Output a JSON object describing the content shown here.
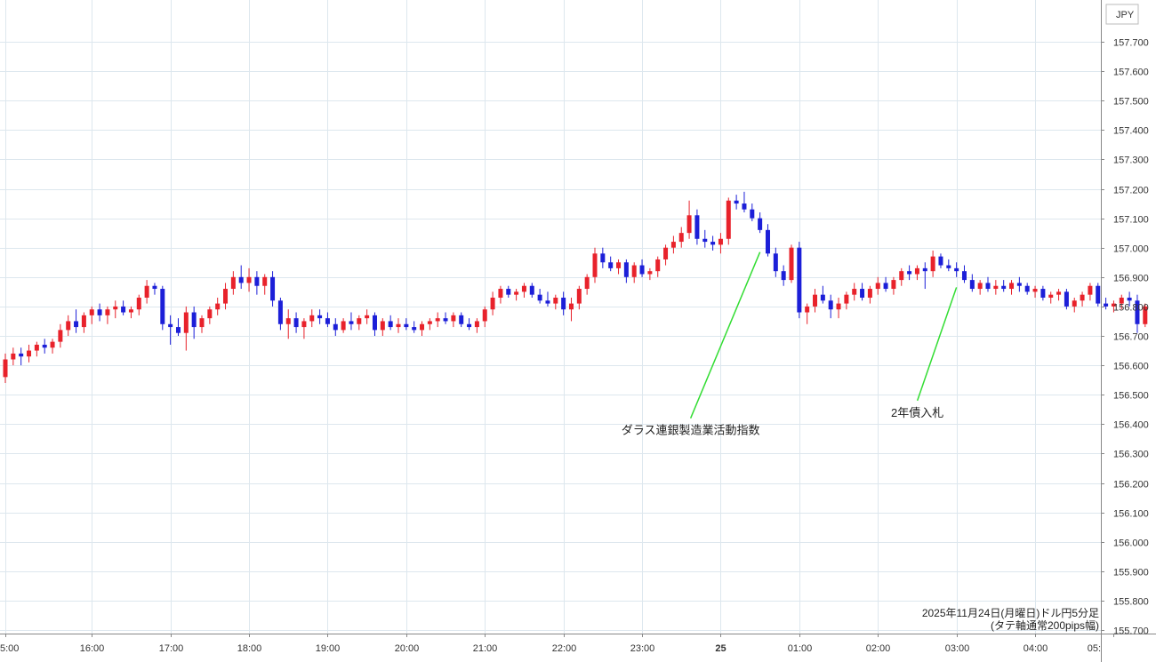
{
  "chart_data": {
    "type": "candlestick",
    "title": "2025年11月24日(月曜日)ドル円5分足",
    "subtitle": "(タテ軸通常200pips幅)",
    "currency_label": "JPY",
    "ylim": [
      155.7,
      157.7
    ],
    "y_ticks": [
      "155.700",
      "155.800",
      "155.900",
      "156.000",
      "156.100",
      "156.200",
      "156.300",
      "156.400",
      "156.500",
      "156.600",
      "156.700",
      "156.800",
      "156.900",
      "157.000",
      "157.100",
      "157.200",
      "157.300",
      "157.400",
      "157.500",
      "157.600",
      "157.700"
    ],
    "x_ticks": [
      {
        "label": "5:00",
        "bar": 0
      },
      {
        "label": "16:00",
        "bar": 11
      },
      {
        "label": "17:00",
        "bar": 21
      },
      {
        "label": "18:00",
        "bar": 31
      },
      {
        "label": "19:00",
        "bar": 41
      },
      {
        "label": "20:00",
        "bar": 51
      },
      {
        "label": "21:00",
        "bar": 61
      },
      {
        "label": "22:00",
        "bar": 71
      },
      {
        "label": "23:00",
        "bar": 81
      },
      {
        "label": "25",
        "bar": 91
      },
      {
        "label": "01:00",
        "bar": 101
      },
      {
        "label": "02:00",
        "bar": 111
      },
      {
        "label": "03:00",
        "bar": 121
      },
      {
        "label": "04:00",
        "bar": 131
      },
      {
        "label": "05:",
        "bar": 141
      }
    ],
    "grid": true,
    "colors": {
      "up": "#e8222b",
      "down": "#1c1fd8",
      "annotation_line": "#33dd33",
      "grid": "#dde7ee"
    },
    "annotations": [
      {
        "text": "ダラス連銀製造業活動指数",
        "bar": 96,
        "price": 156.985,
        "label_price": 156.42
      },
      {
        "text": "2年債入札",
        "bar": 121,
        "price": 156.865,
        "label_price": 156.48
      }
    ],
    "candles": [
      [
        156.56,
        156.64,
        156.54,
        156.62
      ],
      [
        156.62,
        156.66,
        156.6,
        156.64
      ],
      [
        156.64,
        156.66,
        156.6,
        156.63
      ],
      [
        156.63,
        156.67,
        156.61,
        156.65
      ],
      [
        156.65,
        156.68,
        156.63,
        156.67
      ],
      [
        156.67,
        156.69,
        156.64,
        156.66
      ],
      [
        156.66,
        156.69,
        156.64,
        156.68
      ],
      [
        156.68,
        156.74,
        156.66,
        156.72
      ],
      [
        156.72,
        156.77,
        156.7,
        156.75
      ],
      [
        156.75,
        156.79,
        156.71,
        156.73
      ],
      [
        156.73,
        156.78,
        156.71,
        156.77
      ],
      [
        156.77,
        156.8,
        156.74,
        156.79
      ],
      [
        156.79,
        156.81,
        156.75,
        156.77
      ],
      [
        156.77,
        156.8,
        156.74,
        156.79
      ],
      [
        156.79,
        156.82,
        156.76,
        156.8
      ],
      [
        156.8,
        156.82,
        156.77,
        156.78
      ],
      [
        156.78,
        156.8,
        156.76,
        156.79
      ],
      [
        156.79,
        156.84,
        156.77,
        156.83
      ],
      [
        156.83,
        156.89,
        156.81,
        156.87
      ],
      [
        156.87,
        156.88,
        156.84,
        156.86
      ],
      [
        156.86,
        156.87,
        156.72,
        156.74
      ],
      [
        156.74,
        156.77,
        156.67,
        156.73
      ],
      [
        156.73,
        156.76,
        156.7,
        156.71
      ],
      [
        156.71,
        156.8,
        156.65,
        156.78
      ],
      [
        156.78,
        156.8,
        156.69,
        156.73
      ],
      [
        156.73,
        156.77,
        156.71,
        156.76
      ],
      [
        156.76,
        156.8,
        156.74,
        156.79
      ],
      [
        156.79,
        156.83,
        156.77,
        156.81
      ],
      [
        156.81,
        156.88,
        156.79,
        156.86
      ],
      [
        156.86,
        156.92,
        156.84,
        156.9
      ],
      [
        156.9,
        156.94,
        156.86,
        156.88
      ],
      [
        156.88,
        156.93,
        156.85,
        156.9
      ],
      [
        156.9,
        156.92,
        156.84,
        156.87
      ],
      [
        156.87,
        156.91,
        156.84,
        156.9
      ],
      [
        156.9,
        156.92,
        156.8,
        156.82
      ],
      [
        156.82,
        156.83,
        156.72,
        156.74
      ],
      [
        156.74,
        156.79,
        156.69,
        156.76
      ],
      [
        156.76,
        156.78,
        156.71,
        156.73
      ],
      [
        156.73,
        156.76,
        156.69,
        156.75
      ],
      [
        156.75,
        156.79,
        156.73,
        156.77
      ],
      [
        156.77,
        156.79,
        156.74,
        156.76
      ],
      [
        156.76,
        156.78,
        156.73,
        156.74
      ],
      [
        156.74,
        156.76,
        156.7,
        156.72
      ],
      [
        156.72,
        156.76,
        156.71,
        156.75
      ],
      [
        156.75,
        156.78,
        156.72,
        156.74
      ],
      [
        156.74,
        156.77,
        156.72,
        156.76
      ],
      [
        156.76,
        156.79,
        156.74,
        156.77
      ],
      [
        156.77,
        156.78,
        156.7,
        156.72
      ],
      [
        156.72,
        156.76,
        156.7,
        156.75
      ],
      [
        156.75,
        156.77,
        156.72,
        156.73
      ],
      [
        156.73,
        156.76,
        156.71,
        156.74
      ],
      [
        156.74,
        156.76,
        156.72,
        156.73
      ],
      [
        156.73,
        156.75,
        156.71,
        156.72
      ],
      [
        156.72,
        156.75,
        156.7,
        156.74
      ],
      [
        156.74,
        156.76,
        156.72,
        156.75
      ],
      [
        156.75,
        156.78,
        156.73,
        156.76
      ],
      [
        156.76,
        156.78,
        156.74,
        156.75
      ],
      [
        156.75,
        156.78,
        156.73,
        156.77
      ],
      [
        156.77,
        156.78,
        156.73,
        156.74
      ],
      [
        156.74,
        156.76,
        156.72,
        156.73
      ],
      [
        156.73,
        156.76,
        156.71,
        156.75
      ],
      [
        156.75,
        156.8,
        156.73,
        156.79
      ],
      [
        156.79,
        156.85,
        156.77,
        156.83
      ],
      [
        156.83,
        156.87,
        156.81,
        156.86
      ],
      [
        156.86,
        156.87,
        156.83,
        156.84
      ],
      [
        156.84,
        156.86,
        156.82,
        156.85
      ],
      [
        156.85,
        156.88,
        156.83,
        156.87
      ],
      [
        156.87,
        156.88,
        156.83,
        156.84
      ],
      [
        156.84,
        156.86,
        156.81,
        156.82
      ],
      [
        156.82,
        156.85,
        156.8,
        156.81
      ],
      [
        156.81,
        156.84,
        156.79,
        156.83
      ],
      [
        156.83,
        156.85,
        156.77,
        156.79
      ],
      [
        156.79,
        156.83,
        156.75,
        156.81
      ],
      [
        156.81,
        156.87,
        156.79,
        156.86
      ],
      [
        156.86,
        156.91,
        156.84,
        156.9
      ],
      [
        156.9,
        157.0,
        156.88,
        156.98
      ],
      [
        156.98,
        157.0,
        156.93,
        156.95
      ],
      [
        156.95,
        156.97,
        156.92,
        156.93
      ],
      [
        156.93,
        156.96,
        156.91,
        156.95
      ],
      [
        156.95,
        156.96,
        156.88,
        156.9
      ],
      [
        156.9,
        156.95,
        156.88,
        156.94
      ],
      [
        156.94,
        156.96,
        156.9,
        156.91
      ],
      [
        156.91,
        156.93,
        156.89,
        156.92
      ],
      [
        156.92,
        156.97,
        156.9,
        156.96
      ],
      [
        156.96,
        157.01,
        156.94,
        157.0
      ],
      [
        157.0,
        157.04,
        156.98,
        157.02
      ],
      [
        157.02,
        157.07,
        157.0,
        157.05
      ],
      [
        157.05,
        157.16,
        157.03,
        157.11
      ],
      [
        157.11,
        157.13,
        157.01,
        157.03
      ],
      [
        157.03,
        157.06,
        157.0,
        157.02
      ],
      [
        157.02,
        157.04,
        156.99,
        157.01
      ],
      [
        157.01,
        157.05,
        156.98,
        157.03
      ],
      [
        157.03,
        157.17,
        157.01,
        157.16
      ],
      [
        157.16,
        157.18,
        157.13,
        157.15
      ],
      [
        157.15,
        157.19,
        157.12,
        157.13
      ],
      [
        157.13,
        157.15,
        157.09,
        157.1
      ],
      [
        157.1,
        157.12,
        157.05,
        157.06
      ],
      [
        157.06,
        157.08,
        156.97,
        156.98
      ],
      [
        156.98,
        157.0,
        156.9,
        156.92
      ],
      [
        156.92,
        156.94,
        156.87,
        156.89
      ],
      [
        156.89,
        157.01,
        156.88,
        157.0
      ],
      [
        157.0,
        157.02,
        156.76,
        156.78
      ],
      [
        156.78,
        156.81,
        156.74,
        156.8
      ],
      [
        156.8,
        156.86,
        156.78,
        156.84
      ],
      [
        156.84,
        156.87,
        156.81,
        156.82
      ],
      [
        156.82,
        156.84,
        156.76,
        156.79
      ],
      [
        156.79,
        156.83,
        156.76,
        156.81
      ],
      [
        156.81,
        156.85,
        156.79,
        156.84
      ],
      [
        156.84,
        156.88,
        156.82,
        156.86
      ],
      [
        156.86,
        156.88,
        156.82,
        156.83
      ],
      [
        156.83,
        156.87,
        156.81,
        156.86
      ],
      [
        156.86,
        156.9,
        156.84,
        156.88
      ],
      [
        156.88,
        156.9,
        156.85,
        156.86
      ],
      [
        156.86,
        156.9,
        156.84,
        156.89
      ],
      [
        156.89,
        156.93,
        156.87,
        156.92
      ],
      [
        156.92,
        156.94,
        156.89,
        156.91
      ],
      [
        156.91,
        156.94,
        156.89,
        156.93
      ],
      [
        156.93,
        156.95,
        156.86,
        156.92
      ],
      [
        156.92,
        156.99,
        156.9,
        156.97
      ],
      [
        156.97,
        156.98,
        156.93,
        156.94
      ],
      [
        156.94,
        156.96,
        156.92,
        156.93
      ],
      [
        156.93,
        156.95,
        156.9,
        156.92
      ],
      [
        156.92,
        156.94,
        156.88,
        156.89
      ],
      [
        156.89,
        156.91,
        156.85,
        156.86
      ],
      [
        156.86,
        156.89,
        156.84,
        156.88
      ],
      [
        156.88,
        156.9,
        156.85,
        156.86
      ],
      [
        156.86,
        156.89,
        156.84,
        156.87
      ],
      [
        156.87,
        156.89,
        156.85,
        156.86
      ],
      [
        156.86,
        156.89,
        156.84,
        156.88
      ],
      [
        156.88,
        156.9,
        156.85,
        156.87
      ],
      [
        156.87,
        156.88,
        156.84,
        156.85
      ],
      [
        156.85,
        156.87,
        156.83,
        156.86
      ],
      [
        156.86,
        156.87,
        156.82,
        156.83
      ],
      [
        156.83,
        156.85,
        156.81,
        156.84
      ],
      [
        156.84,
        156.86,
        156.82,
        156.85
      ],
      [
        156.85,
        156.86,
        156.79,
        156.8
      ],
      [
        156.8,
        156.83,
        156.78,
        156.82
      ],
      [
        156.82,
        156.85,
        156.8,
        156.84
      ],
      [
        156.84,
        156.88,
        156.82,
        156.87
      ],
      [
        156.87,
        156.88,
        156.8,
        156.81
      ],
      [
        156.81,
        156.83,
        156.79,
        156.8
      ],
      [
        156.8,
        156.82,
        156.78,
        156.81
      ],
      [
        156.81,
        156.84,
        156.79,
        156.83
      ],
      [
        156.83,
        156.85,
        156.8,
        156.82
      ],
      [
        156.82,
        156.84,
        156.71,
        156.74
      ],
      [
        156.74,
        156.81,
        156.73,
        156.8
      ]
    ]
  }
}
